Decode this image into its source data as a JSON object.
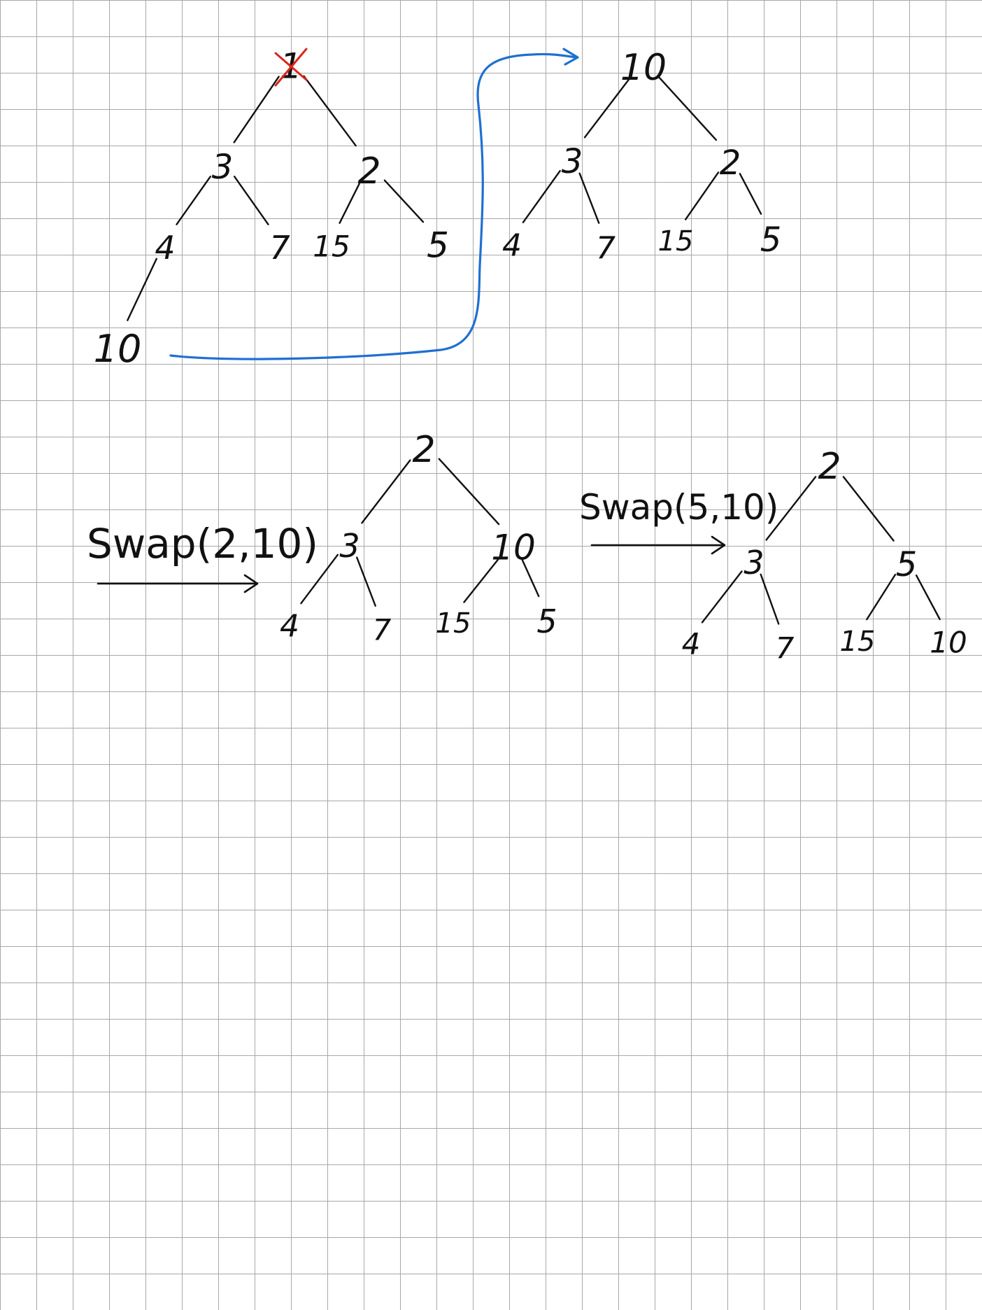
{
  "colors": {
    "ink": "#111111",
    "strike": "#d9261c",
    "move_arrow": "#1f6fd1",
    "grid": "#a8a8a8"
  },
  "trees": [
    {
      "id": "tree-original",
      "nodes": [
        {
          "id": "root",
          "label": "1",
          "struck": true
        },
        {
          "id": "a",
          "label": "3"
        },
        {
          "id": "b",
          "label": "2"
        },
        {
          "id": "c",
          "label": "4"
        },
        {
          "id": "d",
          "label": "7"
        },
        {
          "id": "e",
          "label": "15"
        },
        {
          "id": "f",
          "label": "5"
        },
        {
          "id": "g",
          "label": "10"
        }
      ],
      "edges": [
        [
          "root",
          "a"
        ],
        [
          "root",
          "b"
        ],
        [
          "a",
          "c"
        ],
        [
          "a",
          "d"
        ],
        [
          "b",
          "e"
        ],
        [
          "b",
          "f"
        ],
        [
          "c",
          "g"
        ]
      ]
    },
    {
      "id": "tree-after-move",
      "nodes": [
        {
          "id": "root",
          "label": "10"
        },
        {
          "id": "a",
          "label": "3"
        },
        {
          "id": "b",
          "label": "2"
        },
        {
          "id": "c",
          "label": "4"
        },
        {
          "id": "d",
          "label": "7"
        },
        {
          "id": "e",
          "label": "15"
        },
        {
          "id": "f",
          "label": "5"
        }
      ],
      "edges": [
        [
          "root",
          "a"
        ],
        [
          "root",
          "b"
        ],
        [
          "a",
          "c"
        ],
        [
          "a",
          "d"
        ],
        [
          "b",
          "e"
        ],
        [
          "b",
          "f"
        ]
      ]
    },
    {
      "id": "tree-after-swap-1",
      "nodes": [
        {
          "id": "root",
          "label": "2"
        },
        {
          "id": "a",
          "label": "3"
        },
        {
          "id": "b",
          "label": "10"
        },
        {
          "id": "c",
          "label": "4"
        },
        {
          "id": "d",
          "label": "7"
        },
        {
          "id": "e",
          "label": "15"
        },
        {
          "id": "f",
          "label": "5"
        }
      ],
      "edges": [
        [
          "root",
          "a"
        ],
        [
          "root",
          "b"
        ],
        [
          "a",
          "c"
        ],
        [
          "a",
          "d"
        ],
        [
          "b",
          "e"
        ],
        [
          "b",
          "f"
        ]
      ]
    },
    {
      "id": "tree-after-swap-2",
      "nodes": [
        {
          "id": "root",
          "label": "2"
        },
        {
          "id": "a",
          "label": "3"
        },
        {
          "id": "b",
          "label": "5"
        },
        {
          "id": "c",
          "label": "4"
        },
        {
          "id": "d",
          "label": "7"
        },
        {
          "id": "e",
          "label": "15"
        },
        {
          "id": "f",
          "label": "10"
        }
      ],
      "edges": [
        [
          "root",
          "a"
        ],
        [
          "root",
          "b"
        ],
        [
          "a",
          "c"
        ],
        [
          "a",
          "d"
        ],
        [
          "b",
          "e"
        ],
        [
          "b",
          "f"
        ]
      ]
    }
  ],
  "annotations": {
    "swap_1": "Swap(2,10)",
    "swap_2": "Swap(5,10)"
  }
}
